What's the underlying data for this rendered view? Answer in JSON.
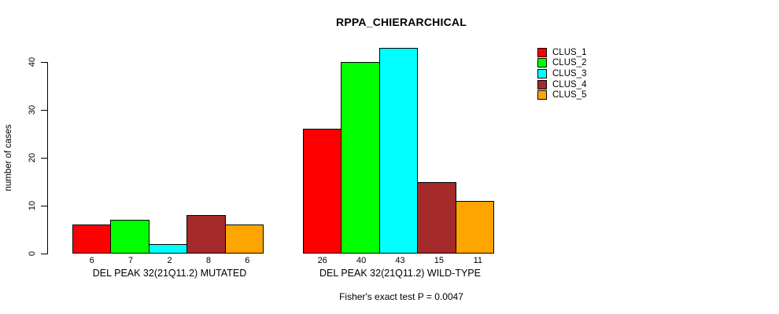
{
  "chart_data": {
    "type": "bar",
    "title": "RPPA_CHIERARCHICAL",
    "ylabel": "number of cases",
    "ylim": [
      0,
      43
    ],
    "yticks": [
      0,
      10,
      20,
      30,
      40
    ],
    "grid": false,
    "legend_position": "top-right",
    "categories": [
      "DEL PEAK 32(21Q11.2) MUTATED",
      "DEL PEAK 32(21Q11.2) WILD-TYPE"
    ],
    "series": [
      {
        "name": "CLUS_1",
        "color": "#FF0000",
        "values": [
          6,
          26
        ]
      },
      {
        "name": "CLUS_2",
        "color": "#00FF00",
        "values": [
          7,
          40
        ]
      },
      {
        "name": "CLUS_3",
        "color": "#00FFFF",
        "values": [
          2,
          43
        ]
      },
      {
        "name": "CLUS_4",
        "color": "#A52A2A",
        "values": [
          8,
          15
        ]
      },
      {
        "name": "CLUS_5",
        "color": "#FFA500",
        "values": [
          6,
          11
        ]
      }
    ],
    "footnote": "Fisher's exact test P = 0.0047"
  }
}
